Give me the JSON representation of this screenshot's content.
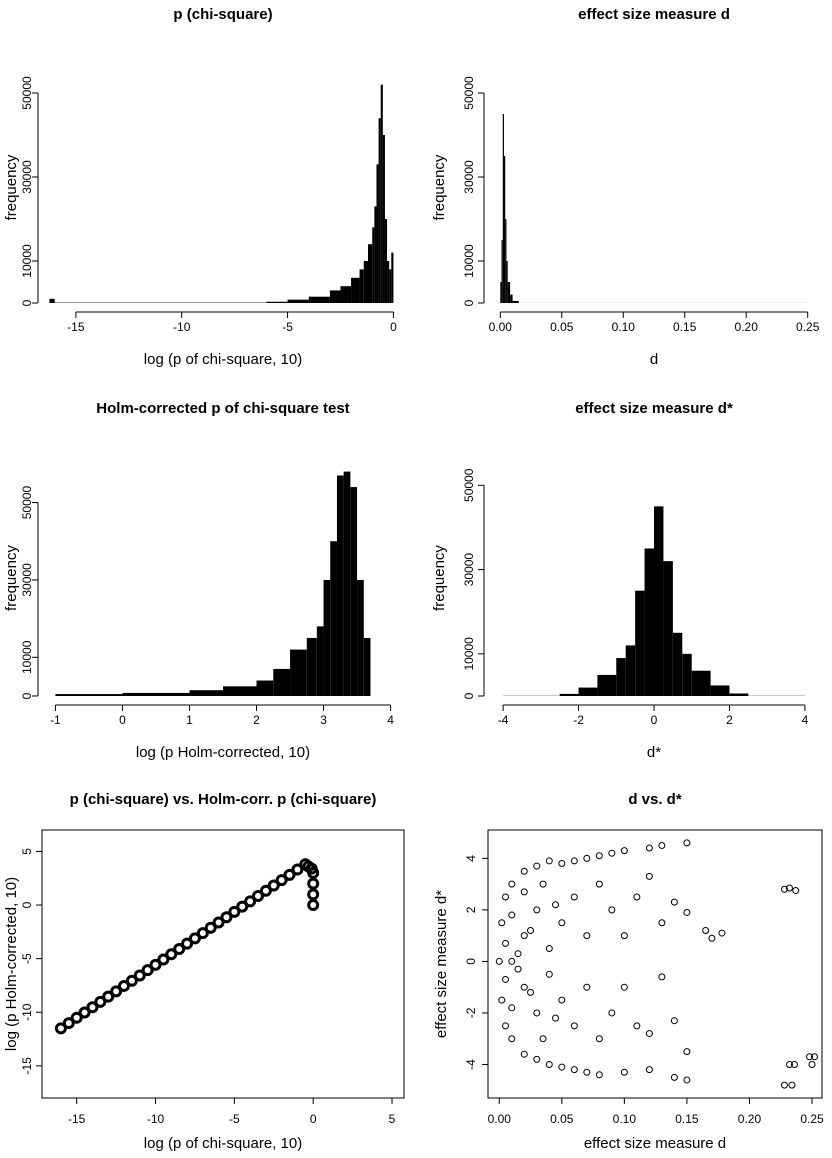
{
  "chart_data": [
    {
      "type": "histogram",
      "title": "p (chi-square)",
      "x_label": "log (p of chi-square, 10)",
      "y_label": "frequency",
      "color": "#000000",
      "bins": [
        -16.25,
        -16,
        -10,
        -6,
        -5,
        -4,
        -3,
        -2.5,
        -2,
        -1.6,
        -1.4,
        -1.2,
        -1.0,
        -0.9,
        -0.8,
        -0.7,
        -0.6,
        -0.5,
        -0.4,
        -0.3,
        -0.2,
        -0.1,
        0
      ],
      "counts": [
        1000,
        100,
        100,
        300,
        800,
        1500,
        3000,
        4000,
        6000,
        8000,
        10000,
        14000,
        18000,
        23000,
        33000,
        44000,
        52000,
        40000,
        20000,
        10000,
        8000,
        12000
      ],
      "xlim": [
        -16.6,
        0.5
      ],
      "ylim": [
        0,
        55000
      ],
      "xticks": [
        -15,
        -10,
        -5,
        0
      ],
      "yticks": [
        0,
        10000,
        30000,
        50000
      ]
    },
    {
      "type": "histogram",
      "title": "effect size measure d",
      "x_label": "d",
      "y_label": "frequency",
      "color": "#000000",
      "bins": [
        0,
        0.001,
        0.002,
        0.003,
        0.004,
        0.005,
        0.006,
        0.008,
        0.01,
        0.015,
        0.25
      ],
      "counts": [
        5000,
        15000,
        45000,
        35000,
        20000,
        10000,
        5000,
        2000,
        500,
        20
      ],
      "xlim": [
        -0.01,
        0.26
      ],
      "ylim": [
        0,
        55000
      ],
      "xticks": [
        {
          "value": 0,
          "label": "0.00"
        },
        0.05,
        {
          "value": 0.1,
          "label": "0.10"
        },
        0.15,
        {
          "value": 0.2,
          "label": "0.20"
        },
        0.25
      ],
      "yticks": [
        0,
        10000,
        30000,
        50000
      ]
    },
    {
      "type": "histogram",
      "title": "Holm-corrected p of chi-square test",
      "x_label": "log (p Holm-corrected, 10)",
      "y_label": "frequency",
      "color": "#000000",
      "bins": [
        -1,
        0,
        1,
        1.5,
        2,
        2.25,
        2.5,
        2.75,
        2.9,
        3.0,
        3.1,
        3.2,
        3.3,
        3.4,
        3.5,
        3.6,
        3.7
      ],
      "counts": [
        500,
        800,
        1500,
        2500,
        4000,
        7000,
        12000,
        15000,
        18000,
        30000,
        40000,
        57000,
        58000,
        54000,
        30000,
        15000
      ],
      "xlim": [
        -1.2,
        4.2
      ],
      "ylim": [
        0,
        61000
      ],
      "xticks": [
        -1,
        0,
        1,
        2,
        3,
        4
      ],
      "yticks": [
        0,
        10000,
        30000,
        50000
      ]
    },
    {
      "type": "histogram",
      "title": "effect size measure d*",
      "x_label": "d*",
      "y_label": "frequency",
      "color": "#000000",
      "bins": [
        -4,
        -2.5,
        -2,
        -1.5,
        -1,
        -0.75,
        -0.5,
        -0.25,
        0,
        0.25,
        0.5,
        0.75,
        1,
        1.5,
        2,
        2.5,
        4
      ],
      "counts": [
        50,
        500,
        2000,
        5000,
        9000,
        12000,
        25000,
        35000,
        45000,
        32000,
        15000,
        10000,
        6000,
        2500,
        600,
        50
      ],
      "xlim": [
        -4.4,
        4.4
      ],
      "ylim": [
        0,
        56000
      ],
      "xticks": [
        -4,
        -2,
        0,
        2,
        4
      ],
      "yticks": [
        0,
        10000,
        30000,
        50000
      ]
    },
    {
      "type": "scatter",
      "title": "p (chi-square) vs. Holm-corr. p (chi-square)",
      "x_label": "log (p of chi-square, 10)",
      "y_label": "log (p Holm-corrected, 10)",
      "color": "#000000",
      "x": [
        -16,
        -15.5,
        -15,
        -14.5,
        -14,
        -13.5,
        -13,
        -12.5,
        -12,
        -11.5,
        -11,
        -10.5,
        -10,
        -9.5,
        -9,
        -8.5,
        -8,
        -7.5,
        -7,
        -6.5,
        -6,
        -5.5,
        -5,
        -4.5,
        -4,
        -3.5,
        -3,
        -2.5,
        -2,
        -1.5,
        -1,
        -0.5,
        -0.3,
        -0.1,
        0,
        0,
        0,
        0
      ],
      "y": [
        -11.5,
        -11.01,
        -10.51,
        -10.02,
        -9.53,
        -9.03,
        -8.54,
        -8.05,
        -7.55,
        -7.06,
        -6.57,
        -6.07,
        -5.58,
        -5.08,
        -4.59,
        -4.1,
        -3.6,
        -3.11,
        -2.62,
        -2.12,
        -1.63,
        -1.14,
        -0.64,
        -0.15,
        0.34,
        0.84,
        1.33,
        1.82,
        2.32,
        2.81,
        3.31,
        3.8,
        3.6,
        3.4,
        3.0,
        2.0,
        1.0,
        0.0
      ],
      "xlim": [
        -17.2,
        5.76
      ],
      "ylim": [
        -18,
        7
      ],
      "xticks": [
        -15,
        -10,
        -5,
        0,
        5
      ],
      "yticks": [
        -15,
        -10,
        -5,
        0,
        5
      ]
    },
    {
      "type": "scatter",
      "title": "d vs. d*",
      "x_label": "effect size measure d",
      "y_label": "effect size measure d*",
      "color": "#000000",
      "x": [
        0.0,
        0.002,
        0.002,
        0.005,
        0.005,
        0.01,
        0.01,
        0.02,
        0.02,
        0.03,
        0.03,
        0.04,
        0.04,
        0.05,
        0.05,
        0.06,
        0.06,
        0.07,
        0.07,
        0.08,
        0.08,
        0.09,
        0.1,
        0.1,
        0.12,
        0.12,
        0.13,
        0.14,
        0.15,
        0.15,
        0.01,
        0.02,
        0.02,
        0.03,
        0.03,
        0.04,
        0.04,
        0.05,
        0.05,
        0.06,
        0.06,
        0.07,
        0.07,
        0.08,
        0.08,
        0.09,
        0.09,
        0.1,
        0.1,
        0.11,
        0.11,
        0.12,
        0.12,
        0.13,
        0.13,
        0.14,
        0.14,
        0.15,
        0.15,
        0.005,
        0.005,
        0.01,
        0.01,
        0.015,
        0.015,
        0.02,
        0.025,
        0.025,
        0.035,
        0.035,
        0.045,
        0.045,
        0.165,
        0.17,
        0.178,
        0.228,
        0.232,
        0.237,
        0.228,
        0.234,
        0.232,
        0.236,
        0.248,
        0.25,
        0.252
      ],
      "y": [
        0,
        1.5,
        -1.5,
        2.5,
        -2.5,
        3,
        -3,
        3.5,
        -3.6,
        3.7,
        -3.8,
        3.9,
        -4,
        3.8,
        -4.1,
        3.9,
        -4.2,
        4.0,
        -4.3,
        4.1,
        -4.4,
        4.2,
        4.3,
        -4.3,
        4.4,
        -4.2,
        4.5,
        -4.5,
        4.6,
        -4.6,
        0,
        1,
        -1,
        2,
        -2,
        0.5,
        -0.5,
        1.5,
        -1.5,
        2.5,
        -2.5,
        1,
        -1,
        3,
        -3,
        2,
        -2,
        1,
        -1,
        2.5,
        -2.5,
        3.3,
        -2.8,
        -0.6,
        1.5,
        2.3,
        -2.3,
        1.9,
        -3.5,
        0.7,
        -0.7,
        1.8,
        -1.8,
        0.3,
        -0.3,
        2.7,
        1.2,
        -1.2,
        3.0,
        -3.0,
        2.2,
        -2.2,
        1.2,
        0.9,
        1.1,
        2.8,
        2.85,
        2.75,
        -4.8,
        -4.8,
        -4.0,
        -4.0,
        -3.7,
        -4.0,
        -3.7
      ],
      "xlim": [
        -0.009,
        0.258
      ],
      "ylim": [
        -5.3,
        5.1
      ],
      "xticks": [
        {
          "value": 0,
          "label": "0.00"
        },
        0.05,
        {
          "value": 0.1,
          "label": "0.10"
        },
        0.15,
        {
          "value": 0.2,
          "label": "0.20"
        },
        0.25
      ],
      "yticks": [
        -4,
        -2,
        0,
        2,
        4
      ]
    }
  ]
}
